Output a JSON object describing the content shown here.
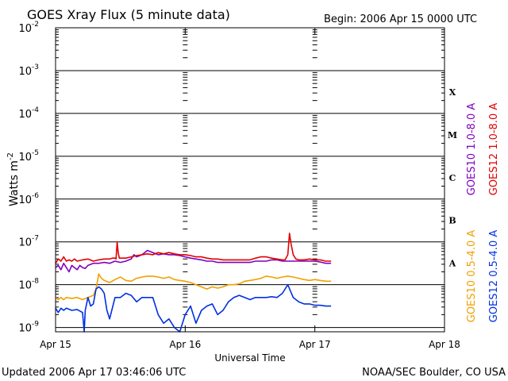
{
  "chart_data": {
    "type": "line",
    "title": "GOES Xray Flux (5 minute data)",
    "begin_label": "Begin:  2006 Apr 15 0000 UTC",
    "xlabel": "Universal Time",
    "ylabel_base": "Watts m",
    "ylabel_exp": "-2",
    "xlim": [
      0,
      72
    ],
    "x_unit": "hours since 2006 Apr 15 0000 UTC",
    "x_ticks": [
      {
        "x": 0,
        "label": "Apr 15"
      },
      {
        "x": 24,
        "label": "Apr 16"
      },
      {
        "x": 48,
        "label": "Apr 17"
      },
      {
        "x": 72,
        "label": "Apr 18"
      }
    ],
    "y_scale": "log",
    "ylim": [
      -9.1,
      -2
    ],
    "y_ticks": [
      {
        "exp": -2,
        "label_base": "10",
        "label_exp": "-2"
      },
      {
        "exp": -3,
        "label_base": "10",
        "label_exp": "-3"
      },
      {
        "exp": -4,
        "label_base": "10",
        "label_exp": "-4"
      },
      {
        "exp": -5,
        "label_base": "10",
        "label_exp": "-5"
      },
      {
        "exp": -6,
        "label_base": "10",
        "label_exp": "-6"
      },
      {
        "exp": -7,
        "label_base": "10",
        "label_exp": "-7"
      },
      {
        "exp": -8,
        "label_base": "10",
        "label_exp": "-8"
      },
      {
        "exp": -9,
        "label_base": "10",
        "label_exp": "-9"
      }
    ],
    "flare_classes": [
      {
        "label": "X",
        "exp": -3.5
      },
      {
        "label": "M",
        "exp": -4.5
      },
      {
        "label": "C",
        "exp": -5.5
      },
      {
        "label": "B",
        "exp": -6.5
      },
      {
        "label": "A",
        "exp": -7.5
      }
    ],
    "grid": true,
    "legend_position": "right, vertical",
    "series": [
      {
        "name": "GOES10 1.0-8.0 A",
        "color": "#7f00bf",
        "points": [
          [
            0,
            -7.6
          ],
          [
            0.5,
            -7.55
          ],
          [
            1,
            -7.65
          ],
          [
            1.5,
            -7.5
          ],
          [
            2,
            -7.6
          ],
          [
            2.5,
            -7.7
          ],
          [
            3,
            -7.55
          ],
          [
            3.5,
            -7.6
          ],
          [
            4,
            -7.65
          ],
          [
            4.5,
            -7.55
          ],
          [
            5,
            -7.6
          ],
          [
            5.5,
            -7.62
          ],
          [
            6,
            -7.55
          ],
          [
            7,
            -7.5
          ],
          [
            8,
            -7.5
          ],
          [
            9,
            -7.48
          ],
          [
            10,
            -7.5
          ],
          [
            11,
            -7.45
          ],
          [
            12,
            -7.48
          ],
          [
            13,
            -7.45
          ],
          [
            14,
            -7.4
          ],
          [
            14.5,
            -7.3
          ],
          [
            15,
            -7.35
          ],
          [
            16,
            -7.3
          ],
          [
            17,
            -7.2
          ],
          [
            18,
            -7.25
          ],
          [
            19,
            -7.3
          ],
          [
            20,
            -7.28
          ],
          [
            21,
            -7.3
          ],
          [
            22,
            -7.3
          ],
          [
            23,
            -7.32
          ],
          [
            24,
            -7.35
          ],
          [
            25,
            -7.38
          ],
          [
            26,
            -7.4
          ],
          [
            27,
            -7.42
          ],
          [
            28,
            -7.45
          ],
          [
            29,
            -7.45
          ],
          [
            30,
            -7.48
          ],
          [
            31,
            -7.48
          ],
          [
            32,
            -7.48
          ],
          [
            33,
            -7.48
          ],
          [
            34,
            -7.48
          ],
          [
            35,
            -7.48
          ],
          [
            36,
            -7.48
          ],
          [
            37,
            -7.45
          ],
          [
            38,
            -7.45
          ],
          [
            39,
            -7.45
          ],
          [
            40,
            -7.42
          ],
          [
            41,
            -7.42
          ],
          [
            42,
            -7.45
          ],
          [
            43,
            -7.45
          ],
          [
            44,
            -7.45
          ],
          [
            45,
            -7.45
          ],
          [
            46,
            -7.45
          ],
          [
            47,
            -7.45
          ],
          [
            48,
            -7.45
          ],
          [
            49,
            -7.47
          ],
          [
            50,
            -7.5
          ],
          [
            51,
            -7.5
          ]
        ]
      },
      {
        "name": "GOES12 1.0-8.0 A",
        "color": "#e00000",
        "points": [
          [
            0,
            -7.5
          ],
          [
            0.5,
            -7.4
          ],
          [
            1,
            -7.45
          ],
          [
            1.5,
            -7.35
          ],
          [
            2,
            -7.45
          ],
          [
            2.5,
            -7.42
          ],
          [
            3,
            -7.45
          ],
          [
            3.5,
            -7.4
          ],
          [
            4,
            -7.45
          ],
          [
            5,
            -7.42
          ],
          [
            6,
            -7.4
          ],
          [
            7,
            -7.45
          ],
          [
            8,
            -7.42
          ],
          [
            9,
            -7.4
          ],
          [
            10,
            -7.4
          ],
          [
            10.5,
            -7.38
          ],
          [
            11,
            -7.38
          ],
          [
            11.2,
            -7.4
          ],
          [
            11.4,
            -7.0
          ],
          [
            11.6,
            -7.25
          ],
          [
            11.8,
            -7.38
          ],
          [
            12,
            -7.38
          ],
          [
            13,
            -7.38
          ],
          [
            14,
            -7.35
          ],
          [
            15,
            -7.32
          ],
          [
            16,
            -7.3
          ],
          [
            17,
            -7.28
          ],
          [
            18,
            -7.3
          ],
          [
            19,
            -7.25
          ],
          [
            20,
            -7.28
          ],
          [
            21,
            -7.25
          ],
          [
            22,
            -7.28
          ],
          [
            23,
            -7.3
          ],
          [
            24,
            -7.3
          ],
          [
            25,
            -7.32
          ],
          [
            26,
            -7.35
          ],
          [
            27,
            -7.35
          ],
          [
            28,
            -7.38
          ],
          [
            29,
            -7.4
          ],
          [
            30,
            -7.4
          ],
          [
            31,
            -7.42
          ],
          [
            32,
            -7.42
          ],
          [
            33,
            -7.42
          ],
          [
            34,
            -7.42
          ],
          [
            35,
            -7.42
          ],
          [
            36,
            -7.42
          ],
          [
            37,
            -7.38
          ],
          [
            38,
            -7.35
          ],
          [
            39,
            -7.35
          ],
          [
            40,
            -7.38
          ],
          [
            41,
            -7.4
          ],
          [
            42,
            -7.42
          ],
          [
            42.5,
            -7.42
          ],
          [
            43,
            -7.3
          ],
          [
            43.3,
            -6.8
          ],
          [
            43.6,
            -7.05
          ],
          [
            44,
            -7.3
          ],
          [
            44.5,
            -7.4
          ],
          [
            45,
            -7.42
          ],
          [
            46,
            -7.42
          ],
          [
            47,
            -7.4
          ],
          [
            48,
            -7.42
          ],
          [
            49,
            -7.42
          ],
          [
            50,
            -7.45
          ],
          [
            51,
            -7.45
          ]
        ]
      },
      {
        "name": "GOES10 0.5-4.0 A",
        "color": "#f0a000",
        "points": [
          [
            0,
            -8.3
          ],
          [
            0.5,
            -8.35
          ],
          [
            1,
            -8.3
          ],
          [
            1.5,
            -8.35
          ],
          [
            2,
            -8.3
          ],
          [
            3,
            -8.32
          ],
          [
            4,
            -8.3
          ],
          [
            5,
            -8.35
          ],
          [
            6,
            -8.3
          ],
          [
            7,
            -8.25
          ],
          [
            7.5,
            -8.1
          ],
          [
            8,
            -7.75
          ],
          [
            8.5,
            -7.85
          ],
          [
            9,
            -7.9
          ],
          [
            10,
            -7.95
          ],
          [
            11,
            -7.88
          ],
          [
            12,
            -7.82
          ],
          [
            13,
            -7.9
          ],
          [
            14,
            -7.92
          ],
          [
            15,
            -7.85
          ],
          [
            16,
            -7.82
          ],
          [
            17,
            -7.8
          ],
          [
            18,
            -7.8
          ],
          [
            19,
            -7.82
          ],
          [
            20,
            -7.85
          ],
          [
            21,
            -7.82
          ],
          [
            22,
            -7.88
          ],
          [
            23,
            -7.9
          ],
          [
            24,
            -7.92
          ],
          [
            25,
            -7.95
          ],
          [
            26,
            -8.0
          ],
          [
            27,
            -8.05
          ],
          [
            28,
            -8.1
          ],
          [
            29,
            -8.05
          ],
          [
            30,
            -8.08
          ],
          [
            31,
            -8.05
          ],
          [
            32,
            -8.0
          ],
          [
            33,
            -8.0
          ],
          [
            34,
            -7.98
          ],
          [
            35,
            -7.92
          ],
          [
            36,
            -7.9
          ],
          [
            37,
            -7.88
          ],
          [
            38,
            -7.85
          ],
          [
            39,
            -7.8
          ],
          [
            40,
            -7.82
          ],
          [
            41,
            -7.85
          ],
          [
            42,
            -7.82
          ],
          [
            43,
            -7.8
          ],
          [
            44,
            -7.82
          ],
          [
            45,
            -7.85
          ],
          [
            46,
            -7.88
          ],
          [
            47,
            -7.9
          ],
          [
            48,
            -7.88
          ],
          [
            49,
            -7.9
          ],
          [
            50,
            -7.92
          ],
          [
            51,
            -7.92
          ]
        ]
      },
      {
        "name": "GOES12 0.5-4.0 A",
        "color": "#0030e0",
        "points": [
          [
            0,
            -8.55
          ],
          [
            0.5,
            -8.65
          ],
          [
            1,
            -8.55
          ],
          [
            1.5,
            -8.6
          ],
          [
            2,
            -8.55
          ],
          [
            3,
            -8.6
          ],
          [
            4,
            -8.58
          ],
          [
            5,
            -8.65
          ],
          [
            5.3,
            -9.2
          ],
          [
            5.5,
            -8.6
          ],
          [
            6,
            -8.3
          ],
          [
            6.5,
            -8.5
          ],
          [
            7,
            -8.45
          ],
          [
            7.5,
            -8.1
          ],
          [
            8,
            -8.05
          ],
          [
            8.5,
            -8.1
          ],
          [
            9,
            -8.2
          ],
          [
            9.5,
            -8.6
          ],
          [
            10,
            -8.8
          ],
          [
            10.5,
            -8.55
          ],
          [
            11,
            -8.3
          ],
          [
            12,
            -8.3
          ],
          [
            13,
            -8.2
          ],
          [
            14,
            -8.25
          ],
          [
            15,
            -8.4
          ],
          [
            16,
            -8.3
          ],
          [
            17,
            -8.3
          ],
          [
            18,
            -8.3
          ],
          [
            19,
            -8.7
          ],
          [
            20,
            -8.9
          ],
          [
            21,
            -8.8
          ],
          [
            22,
            -9.0
          ],
          [
            23,
            -9.1
          ],
          [
            24,
            -8.7
          ],
          [
            25,
            -8.5
          ],
          [
            26,
            -8.9
          ],
          [
            27,
            -8.6
          ],
          [
            28,
            -8.5
          ],
          [
            29,
            -8.45
          ],
          [
            30,
            -8.7
          ],
          [
            31,
            -8.6
          ],
          [
            32,
            -8.4
          ],
          [
            33,
            -8.3
          ],
          [
            34,
            -8.25
          ],
          [
            35,
            -8.3
          ],
          [
            36,
            -8.35
          ],
          [
            37,
            -8.3
          ],
          [
            38,
            -8.3
          ],
          [
            39,
            -8.3
          ],
          [
            40,
            -8.28
          ],
          [
            41,
            -8.3
          ],
          [
            42,
            -8.2
          ],
          [
            43,
            -8.0
          ],
          [
            43.5,
            -8.15
          ],
          [
            44,
            -8.3
          ],
          [
            45,
            -8.4
          ],
          [
            46,
            -8.45
          ],
          [
            47,
            -8.45
          ],
          [
            48,
            -8.48
          ],
          [
            49,
            -8.48
          ],
          [
            50,
            -8.5
          ],
          [
            51,
            -8.5
          ]
        ]
      }
    ]
  },
  "footer": {
    "updated": "Updated 2006 Apr 17 03:46:06 UTC",
    "credit": "NOAA/SEC Boulder, CO USA"
  }
}
